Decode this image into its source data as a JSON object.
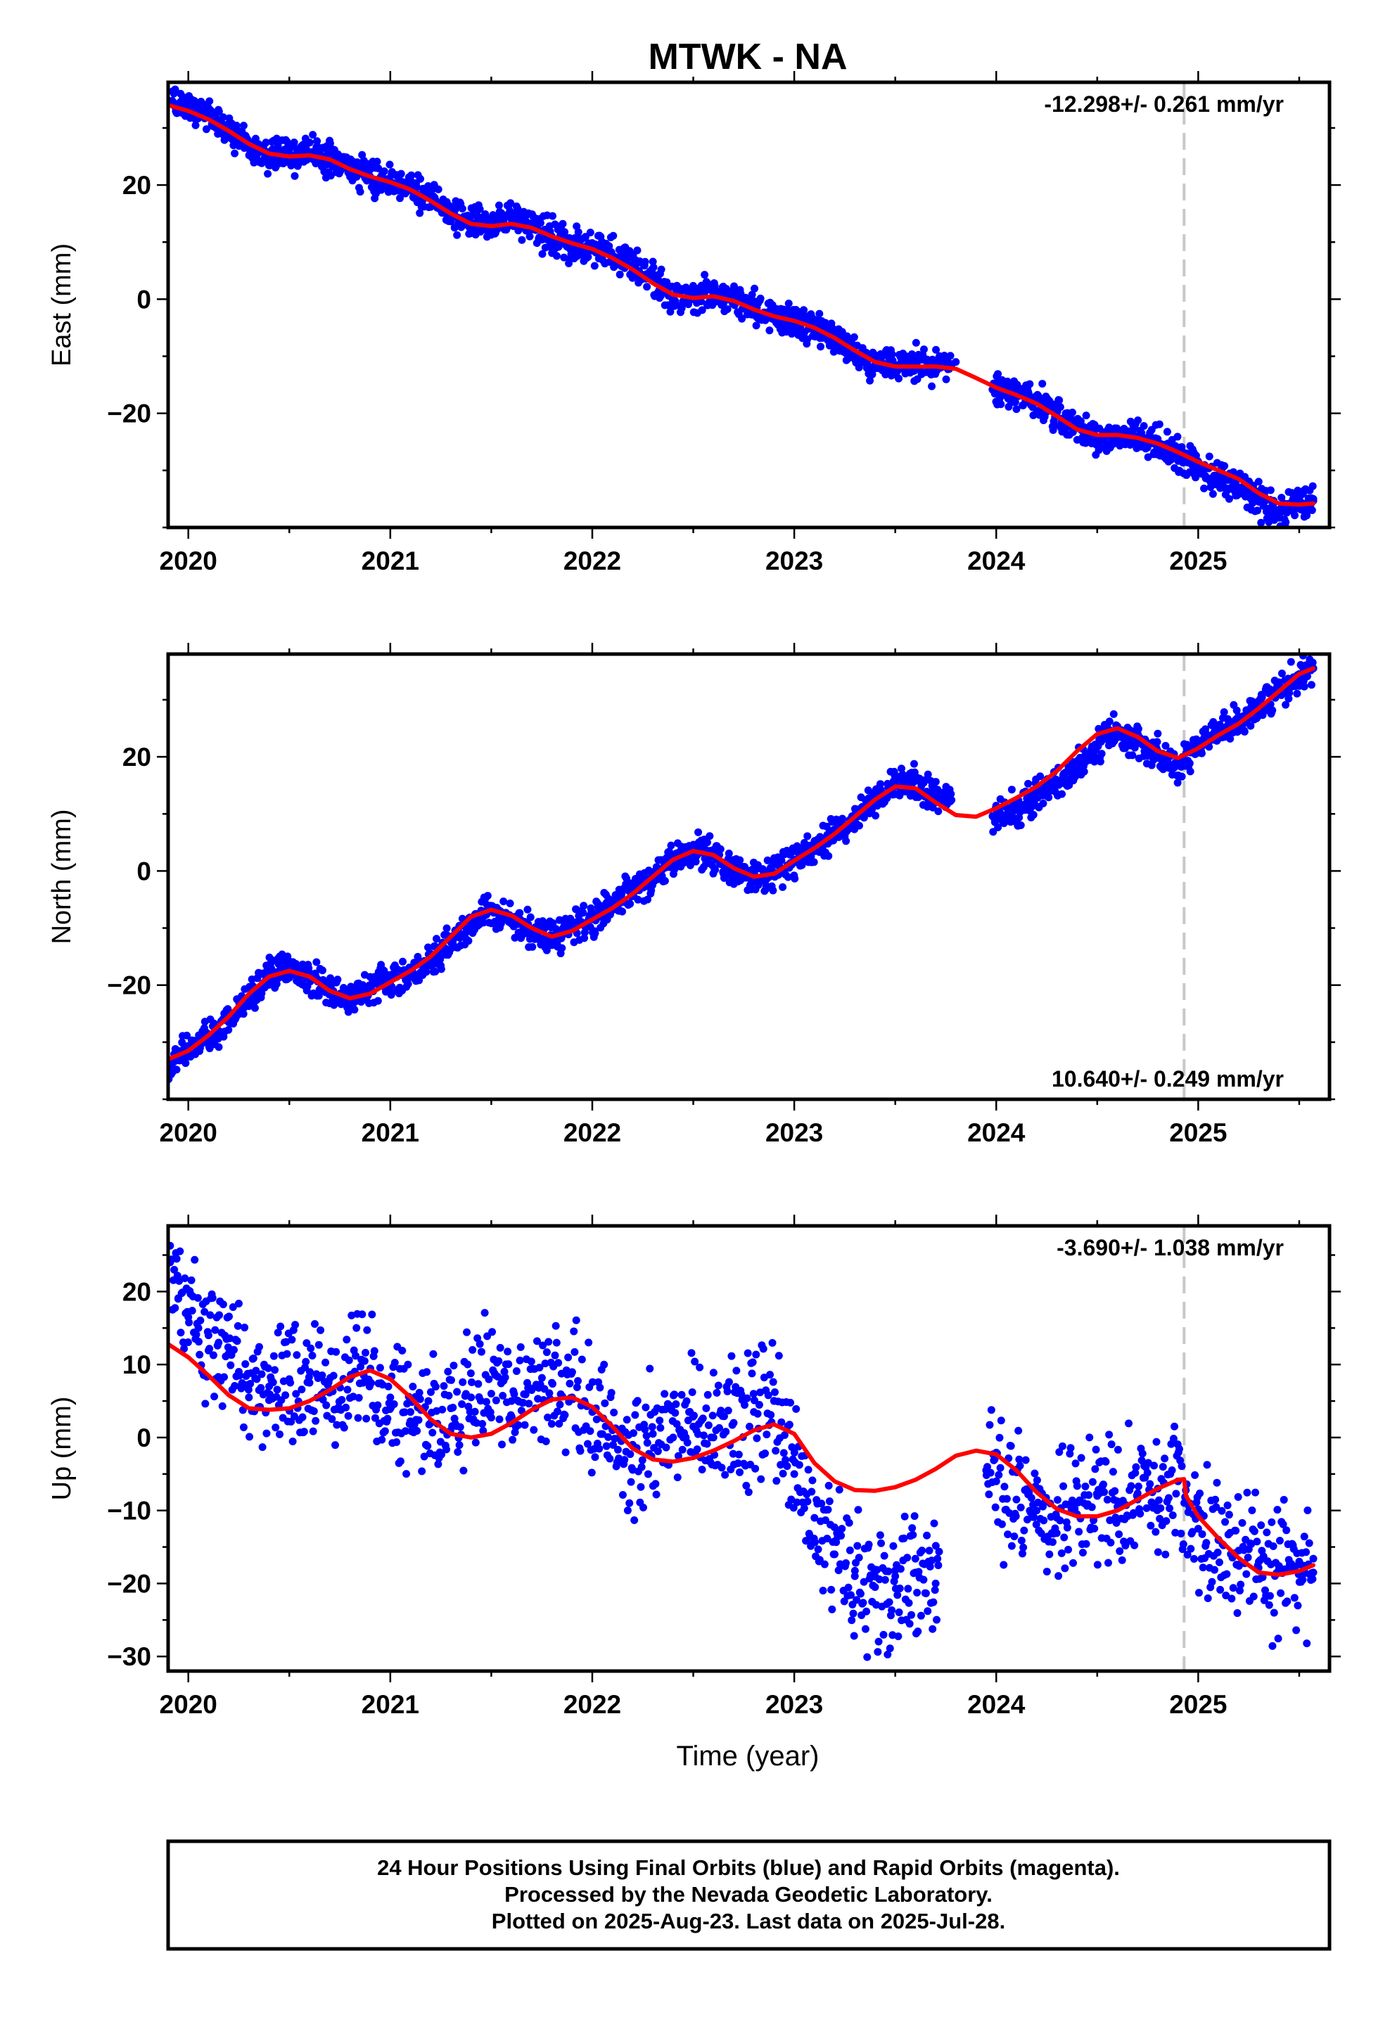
{
  "chart_data": {
    "title": "MTWK - NA",
    "xlabel": "Time (year)",
    "x_ticks": [
      2020,
      2021,
      2022,
      2023,
      2024,
      2025
    ],
    "xlim": [
      2019.9,
      2025.65
    ],
    "x_minor_step": 0.5,
    "event_line": {
      "x": 2024.93,
      "color": "#c8c8c8",
      "style": "dashed"
    },
    "colors": {
      "points": "#0000ff",
      "model": "#ff0000"
    },
    "panels": [
      {
        "key": "east",
        "type": "scatter",
        "ylabel": "East (mm)",
        "ylim": [
          -40,
          38
        ],
        "y_ticks": [
          -20,
          0,
          20
        ],
        "y_minor_step": 10,
        "rate_label": "-12.298+/- 0.261 mm/yr",
        "rate_position": "top-right",
        "series": [
          {
            "role": "observations",
            "color": "#0000ff",
            "x": [
              2019.92,
              2020.0,
              2020.1,
              2020.2,
              2020.3,
              2020.4,
              2020.5,
              2020.6,
              2020.7,
              2020.8,
              2020.9,
              2021.0,
              2021.1,
              2021.2,
              2021.3,
              2021.4,
              2021.5,
              2021.6,
              2021.7,
              2021.8,
              2021.9,
              2022.0,
              2022.1,
              2022.2,
              2022.3,
              2022.4,
              2022.5,
              2022.6,
              2022.7,
              2022.8,
              2022.9,
              2023.0,
              2023.1,
              2023.2,
              2023.3,
              2023.4,
              2023.5,
              2023.6,
              2023.7,
              2023.8,
              2024.0,
              2024.1,
              2024.2,
              2024.3,
              2024.4,
              2024.5,
              2024.6,
              2024.7,
              2024.8,
              2024.9,
              2025.0,
              2025.1,
              2025.2,
              2025.3,
              2025.4,
              2025.5,
              2025.57
            ],
            "y": [
              34.5,
              33.5,
              32.0,
              29.5,
              27.0,
              25.5,
              24.8,
              25.5,
              25.0,
              23.0,
              21.5,
              20.5,
              19.5,
              17.5,
              15.0,
              13.5,
              12.5,
              14.0,
              13.0,
              11.0,
              9.5,
              8.5,
              7.5,
              6.0,
              3.5,
              0.5,
              0.0,
              1.0,
              0.5,
              -1.5,
              -3.0,
              -3.5,
              -5.0,
              -6.5,
              -9.5,
              -11.5,
              -11.5,
              -11.0,
              -11.5,
              -11.0,
              -15.5,
              -16.5,
              -18.0,
              -20.5,
              -22.5,
              -24.5,
              -24.0,
              -24.0,
              -25.5,
              -27.5,
              -29.5,
              -31.0,
              -33.0,
              -35.5,
              -37.5,
              -35.0,
              -35.0
            ]
          },
          {
            "role": "model",
            "color": "#ff0000",
            "x": [
              2019.9,
              2020.0,
              2020.1,
              2020.2,
              2020.3,
              2020.4,
              2020.5,
              2020.6,
              2020.7,
              2020.8,
              2020.9,
              2021.0,
              2021.1,
              2021.2,
              2021.3,
              2021.4,
              2021.5,
              2021.6,
              2021.7,
              2021.8,
              2021.9,
              2022.0,
              2022.1,
              2022.2,
              2022.3,
              2022.4,
              2022.5,
              2022.6,
              2022.7,
              2022.8,
              2022.9,
              2023.0,
              2023.1,
              2023.2,
              2023.3,
              2023.4,
              2023.5,
              2023.6,
              2023.7,
              2023.8,
              2023.9,
              2024.0,
              2024.1,
              2024.2,
              2024.3,
              2024.4,
              2024.5,
              2024.6,
              2024.7,
              2024.8,
              2024.9,
              2025.0,
              2025.1,
              2025.2,
              2025.3,
              2025.4,
              2025.5,
              2025.57
            ],
            "y": [
              34.0,
              33.0,
              31.5,
              29.5,
              27.2,
              25.5,
              25.0,
              25.2,
              24.5,
              22.8,
              21.5,
              20.5,
              19.2,
              17.2,
              15.0,
              13.2,
              12.8,
              13.2,
              12.5,
              11.0,
              9.8,
              8.8,
              7.2,
              5.2,
              2.8,
              0.8,
              0.2,
              0.5,
              -0.3,
              -1.8,
              -3.0,
              -3.8,
              -5.0,
              -6.8,
              -9.0,
              -11.0,
              -11.8,
              -11.8,
              -11.8,
              -12.2,
              -13.8,
              -15.5,
              -16.8,
              -18.3,
              -20.5,
              -22.8,
              -23.8,
              -23.8,
              -24.3,
              -25.3,
              -26.8,
              -28.5,
              -30.0,
              -31.5,
              -34.0,
              -35.8,
              -36.0,
              -35.8
            ]
          }
        ]
      },
      {
        "key": "north",
        "type": "scatter",
        "ylabel": "North (mm)",
        "ylim": [
          -40,
          38
        ],
        "y_ticks": [
          -20,
          0,
          20
        ],
        "y_minor_step": 10,
        "rate_label": "10.640+/- 0.249 mm/yr",
        "rate_position": "bottom-right",
        "series": [
          {
            "role": "observations",
            "color": "#0000ff",
            "x": [
              2019.9,
              2020.0,
              2020.1,
              2020.2,
              2020.3,
              2020.4,
              2020.5,
              2020.6,
              2020.7,
              2020.8,
              2020.9,
              2021.0,
              2021.1,
              2021.2,
              2021.3,
              2021.4,
              2021.5,
              2021.6,
              2021.7,
              2021.8,
              2021.9,
              2022.0,
              2022.1,
              2022.2,
              2022.3,
              2022.4,
              2022.5,
              2022.6,
              2022.7,
              2022.8,
              2022.9,
              2023.0,
              2023.1,
              2023.2,
              2023.3,
              2023.4,
              2023.5,
              2023.6,
              2023.7,
              2024.0,
              2024.1,
              2024.2,
              2024.3,
              2024.4,
              2024.5,
              2024.6,
              2024.7,
              2024.8,
              2024.9,
              2025.0,
              2025.1,
              2025.2,
              2025.3,
              2025.4,
              2025.5,
              2025.57
            ],
            "y": [
              -34.5,
              -31.0,
              -29.0,
              -26.5,
              -22.0,
              -18.5,
              -17.0,
              -18.5,
              -21.0,
              -22.5,
              -21.0,
              -19.0,
              -18.0,
              -16.0,
              -12.5,
              -9.0,
              -7.0,
              -8.0,
              -10.5,
              -11.5,
              -10.0,
              -8.0,
              -6.0,
              -3.5,
              -1.0,
              2.0,
              3.5,
              2.5,
              0.0,
              -1.5,
              -0.5,
              2.0,
              4.0,
              6.5,
              9.5,
              12.5,
              15.0,
              16.0,
              13.0,
              9.5,
              11.0,
              13.0,
              15.0,
              18.0,
              22.0,
              24.5,
              23.0,
              21.0,
              18.5,
              22.0,
              24.5,
              26.0,
              28.5,
              31.5,
              34.5,
              35.5
            ]
          },
          {
            "role": "model",
            "color": "#ff0000",
            "x": [
              2019.9,
              2020.0,
              2020.1,
              2020.2,
              2020.3,
              2020.4,
              2020.5,
              2020.6,
              2020.7,
              2020.8,
              2020.9,
              2021.0,
              2021.1,
              2021.2,
              2021.3,
              2021.4,
              2021.5,
              2021.6,
              2021.7,
              2021.8,
              2021.9,
              2022.0,
              2022.1,
              2022.2,
              2022.3,
              2022.4,
              2022.5,
              2022.6,
              2022.7,
              2022.8,
              2022.9,
              2023.0,
              2023.1,
              2023.2,
              2023.3,
              2023.4,
              2023.5,
              2023.6,
              2023.7,
              2023.8,
              2023.9,
              2024.0,
              2024.1,
              2024.2,
              2024.3,
              2024.4,
              2024.5,
              2024.6,
              2024.7,
              2024.8,
              2024.9,
              2025.0,
              2025.1,
              2025.2,
              2025.3,
              2025.4,
              2025.5,
              2025.57
            ],
            "y": [
              -33.0,
              -31.5,
              -28.8,
              -25.5,
              -21.5,
              -18.5,
              -17.5,
              -18.5,
              -21.0,
              -22.3,
              -21.5,
              -19.5,
              -17.5,
              -15.0,
              -11.5,
              -8.0,
              -6.8,
              -7.8,
              -10.0,
              -11.5,
              -10.5,
              -8.5,
              -6.5,
              -4.0,
              -1.0,
              2.0,
              3.5,
              2.8,
              0.5,
              -1.0,
              -0.5,
              1.8,
              4.0,
              6.5,
              9.5,
              12.5,
              14.8,
              14.5,
              12.0,
              9.8,
              9.5,
              11.0,
              12.8,
              14.8,
              17.5,
              21.0,
              24.0,
              25.0,
              23.5,
              21.0,
              19.8,
              21.5,
              23.8,
              25.8,
              28.5,
              31.5,
              34.5,
              35.5
            ]
          }
        ]
      },
      {
        "key": "up",
        "type": "scatter",
        "ylabel": "Up (mm)",
        "ylim": [
          -32,
          29
        ],
        "y_ticks": [
          -30,
          -20,
          -10,
          0,
          10,
          20
        ],
        "y_minor_step": 5,
        "rate_label": "-3.690+/- 1.038 mm/yr",
        "rate_position": "top-right",
        "series": [
          {
            "role": "observations",
            "color": "#0000ff",
            "x": [
              2019.91,
              2019.95,
              2020.0,
              2020.05,
              2020.1,
              2020.15,
              2020.2,
              2020.25,
              2020.3,
              2020.35,
              2020.4,
              2020.5,
              2020.6,
              2020.7,
              2020.8,
              2020.9,
              2021.0,
              2021.1,
              2021.2,
              2021.3,
              2021.4,
              2021.5,
              2021.6,
              2021.7,
              2021.8,
              2021.9,
              2022.0,
              2022.1,
              2022.2,
              2022.3,
              2022.4,
              2022.5,
              2022.6,
              2022.7,
              2022.8,
              2022.9,
              2023.0,
              2023.1,
              2023.2,
              2023.3,
              2023.4,
              2023.5,
              2023.6,
              2023.7,
              2023.95,
              2024.0,
              2024.1,
              2024.2,
              2024.3,
              2024.4,
              2024.5,
              2024.6,
              2024.7,
              2024.8,
              2024.9,
              2025.0,
              2025.1,
              2025.2,
              2025.3,
              2025.4,
              2025.5,
              2025.57
            ],
            "y": [
              24.0,
              19.0,
              16.5,
              15.0,
              14.0,
              13.0,
              11.5,
              9.0,
              5.5,
              6.5,
              7.0,
              8.0,
              7.5,
              6.5,
              8.0,
              7.5,
              5.5,
              3.5,
              2.0,
              4.0,
              5.5,
              6.0,
              5.0,
              6.5,
              7.5,
              5.5,
              3.5,
              1.0,
              -1.0,
              0.5,
              0.0,
              1.5,
              0.0,
              2.0,
              3.5,
              5.0,
              -5.0,
              -11.0,
              -16.0,
              -19.0,
              -20.5,
              -19.0,
              -18.5,
              -20.0,
              -4.5,
              -6.0,
              -8.5,
              -10.0,
              -11.0,
              -10.5,
              -8.0,
              -9.5,
              -8.5,
              -7.0,
              -6.0,
              -12.5,
              -14.0,
              -15.5,
              -17.0,
              -18.0,
              -17.0,
              -18.5
            ]
          },
          {
            "role": "model",
            "color": "#ff0000",
            "x": [
              2019.9,
              2020.0,
              2020.1,
              2020.2,
              2020.3,
              2020.4,
              2020.5,
              2020.6,
              2020.7,
              2020.8,
              2020.9,
              2021.0,
              2021.1,
              2021.2,
              2021.3,
              2021.4,
              2021.5,
              2021.6,
              2021.7,
              2021.8,
              2021.9,
              2022.0,
              2022.1,
              2022.2,
              2022.3,
              2022.4,
              2022.5,
              2022.6,
              2022.7,
              2022.8,
              2022.9,
              2023.0,
              2023.1,
              2023.2,
              2023.3,
              2023.4,
              2023.5,
              2023.6,
              2023.7,
              2023.8,
              2023.9,
              2024.0,
              2024.1,
              2024.2,
              2024.3,
              2024.4,
              2024.5,
              2024.6,
              2024.7,
              2024.8,
              2024.9,
              2024.93,
              2024.94,
              2025.0,
              2025.1,
              2025.2,
              2025.3,
              2025.4,
              2025.5,
              2025.57
            ],
            "y": [
              12.8,
              11.0,
              8.5,
              5.8,
              4.0,
              3.8,
              4.0,
              5.0,
              6.5,
              8.3,
              9.2,
              8.0,
              5.5,
              2.5,
              0.5,
              0.0,
              0.5,
              2.0,
              3.8,
              5.2,
              5.5,
              4.2,
              1.5,
              -1.5,
              -3.0,
              -3.3,
              -2.8,
              -1.8,
              -0.5,
              1.0,
              1.8,
              0.5,
              -3.5,
              -6.0,
              -7.2,
              -7.3,
              -6.8,
              -5.8,
              -4.3,
              -2.5,
              -1.8,
              -2.3,
              -4.5,
              -7.5,
              -9.8,
              -10.8,
              -10.8,
              -10.0,
              -8.5,
              -7.0,
              -5.8,
              -5.7,
              -8.0,
              -10.8,
              -13.8,
              -16.5,
              -18.5,
              -18.8,
              -18.3,
              -17.5
            ]
          }
        ]
      }
    ],
    "footer_lines": [
      "24 Hour Positions Using Final Orbits (blue) and Rapid Orbits (magenta).",
      "Processed by the Nevada Geodetic Laboratory.",
      "Plotted on 2025-Aug-23. Last data on 2025-Jul-28."
    ]
  }
}
